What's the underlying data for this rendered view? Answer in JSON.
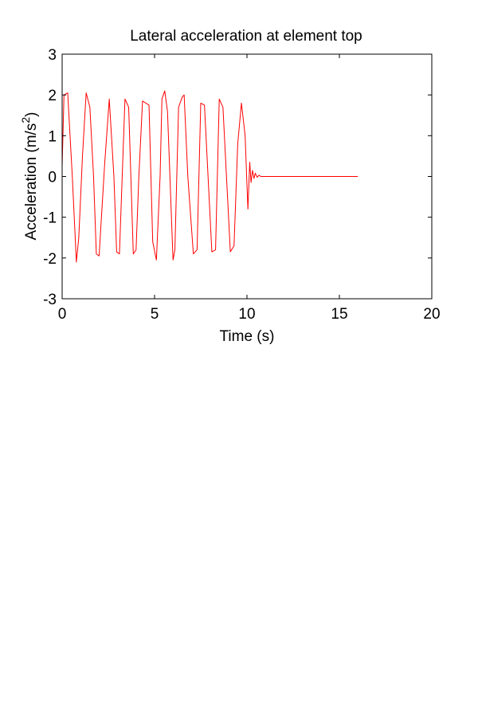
{
  "chart_data": {
    "type": "line",
    "title": "Lateral acceleration at element top",
    "xlabel": "Time (s)",
    "ylabel": {
      "prefix": "Acceleration (m/s",
      "superscript": "2",
      "suffix": ")"
    },
    "xlim": [
      0,
      20
    ],
    "ylim": [
      -3,
      3
    ],
    "xticks": [
      0,
      5,
      10,
      15,
      20
    ],
    "yticks": [
      -3,
      -2,
      -1,
      0,
      1,
      2,
      3
    ],
    "grid": false,
    "series_color": "#ff0000",
    "series": [
      {
        "x": [
          0.0,
          0.1,
          0.3,
          0.55,
          0.77,
          0.9,
          1.1,
          1.3,
          1.5,
          1.7,
          1.85,
          2.0,
          2.3,
          2.55,
          2.8,
          2.95,
          3.1,
          3.4,
          3.6,
          3.85,
          4.0,
          4.15,
          4.35,
          4.7,
          4.9,
          5.1,
          5.3,
          5.4,
          5.55,
          5.7,
          6.0,
          6.1,
          6.3,
          6.5,
          6.6,
          6.8,
          7.1,
          7.3,
          7.5,
          7.7,
          8.1,
          8.3,
          8.5,
          8.7,
          9.1,
          9.3,
          9.5,
          9.7,
          9.9,
          10.05,
          10.15,
          10.22,
          10.3,
          10.38,
          10.45,
          10.55,
          10.65,
          10.75,
          10.9,
          11.1,
          11.5,
          13.0,
          16.0
        ],
        "y": [
          0.25,
          2.0,
          2.05,
          0.0,
          -2.1,
          -1.5,
          0.5,
          2.05,
          1.7,
          0.0,
          -1.9,
          -1.95,
          0.3,
          1.9,
          0.0,
          -1.85,
          -1.9,
          1.9,
          1.7,
          -1.9,
          -1.8,
          0.0,
          1.85,
          1.75,
          -1.6,
          -2.05,
          0.0,
          1.9,
          2.1,
          1.6,
          -2.05,
          -1.8,
          1.7,
          1.95,
          2.0,
          0.0,
          -1.9,
          -1.8,
          1.8,
          1.75,
          -1.85,
          -1.8,
          1.9,
          1.7,
          -1.85,
          -1.7,
          0.8,
          1.8,
          1.0,
          -0.8,
          0.35,
          -0.15,
          0.15,
          -0.05,
          0.08,
          -0.02,
          0.03,
          0.0,
          0.0,
          0.0,
          0.0,
          0.0,
          0.0
        ]
      }
    ]
  }
}
